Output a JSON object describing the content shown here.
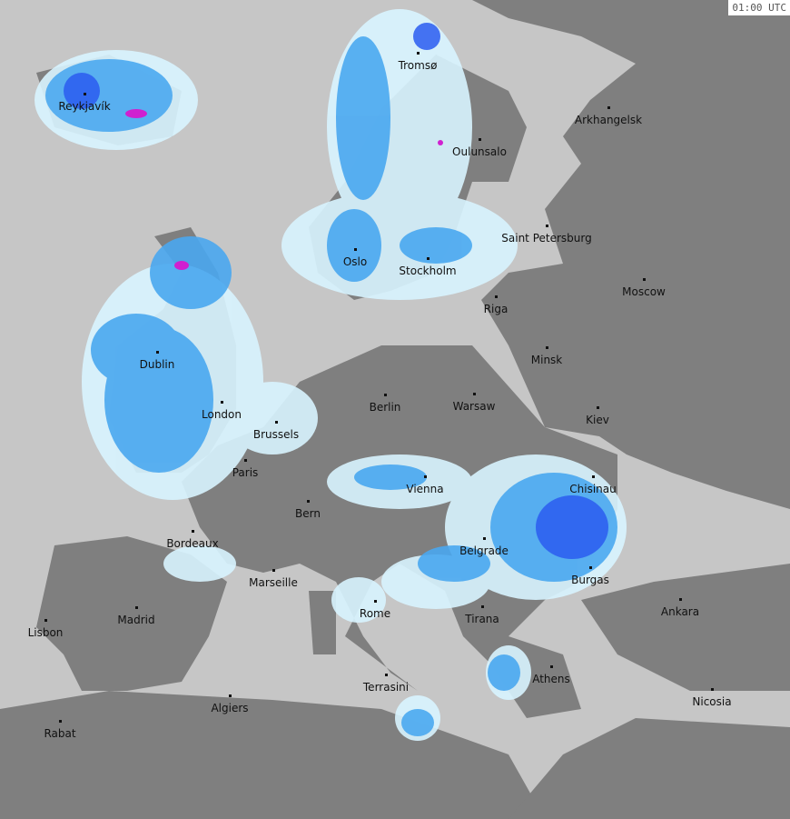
{
  "timestamp": "01:00 UTC",
  "colors": {
    "sea": "#c6c6c6",
    "land": "#7f7f7f",
    "radar_coverage": "#9a9a9a",
    "precip_light": "#d8f4ff",
    "precip_medium": "#4aa8f0",
    "precip_heavy": "#2a5cf0",
    "precip_extreme": "#d020d0"
  },
  "cities": [
    "Reykjavík",
    "Tromsø",
    "Arkhangelsk",
    "Oulunsalo",
    "Saint Petersburg",
    "Oslo",
    "Stockholm",
    "Moscow",
    "Riga",
    "Dublin",
    "Minsk",
    "London",
    "Berlin",
    "Warsaw",
    "Kiev",
    "Brussels",
    "Paris",
    "Vienna",
    "Chisinau",
    "Bern",
    "Bordeaux",
    "Belgrade",
    "Marseille",
    "Burgas",
    "Ankara",
    "Rome",
    "Tirana",
    "Madrid",
    "Lisbon",
    "Athens",
    "Terrasini",
    "Nicosia",
    "Algiers",
    "Rabat"
  ]
}
